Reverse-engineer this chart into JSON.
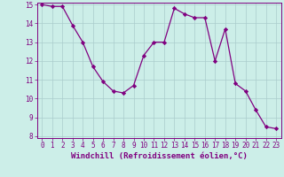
{
  "xlabel": "Windchill (Refroidissement éolien,°C)",
  "x": [
    0,
    1,
    2,
    3,
    4,
    5,
    6,
    7,
    8,
    9,
    10,
    11,
    12,
    13,
    14,
    15,
    16,
    17,
    18,
    19,
    20,
    21,
    22,
    23
  ],
  "y": [
    15.0,
    14.9,
    14.9,
    13.9,
    13.0,
    11.7,
    10.9,
    10.4,
    10.3,
    10.7,
    12.3,
    13.0,
    13.0,
    14.8,
    14.5,
    14.3,
    14.3,
    12.0,
    13.7,
    10.8,
    10.4,
    9.4,
    8.5,
    8.4
  ],
  "line_color": "#800080",
  "marker": "D",
  "marker_size": 2.2,
  "bg_color": "#cceee8",
  "grid_color": "#aacccc",
  "ylim": [
    7.9,
    15.1
  ],
  "yticks": [
    8,
    9,
    10,
    11,
    12,
    13,
    14,
    15
  ],
  "xlim": [
    -0.5,
    23.5
  ],
  "xticks": [
    0,
    1,
    2,
    3,
    4,
    5,
    6,
    7,
    8,
    9,
    10,
    11,
    12,
    13,
    14,
    15,
    16,
    17,
    18,
    19,
    20,
    21,
    22,
    23
  ],
  "tick_color": "#800080",
  "tick_fontsize": 5.5,
  "xlabel_fontsize": 6.5,
  "axis_color": "#800080",
  "line_width": 0.9
}
